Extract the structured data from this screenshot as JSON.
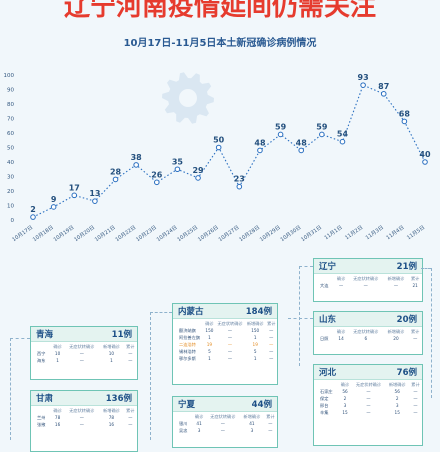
{
  "page": {
    "headline": "辽宁河南疫情延间仍需关注",
    "subtitle": "10月17日-11月5日本土新冠确诊病例情况"
  },
  "colors": {
    "headline": "#e63b2e",
    "line": "#2a6fc0",
    "panel_border": "#6fc4b5",
    "highlight": "#e38a1e",
    "background": "#f1f7fb"
  },
  "icons": [
    "gear-icon"
  ],
  "chart_data": {
    "type": "line",
    "title": "10月17日-11月5日本土新冠确诊病例情况",
    "x": [
      "10月17日",
      "10月18日",
      "10月19日",
      "10月20日",
      "10月21日",
      "10月22日",
      "10月23日",
      "10月24日",
      "10月25日",
      "10月26日",
      "10月27日",
      "10月28日",
      "10月29日",
      "10月30日",
      "10月31日",
      "11月1日",
      "11月2日",
      "11月3日",
      "11月4日",
      "11月5日"
    ],
    "values": [
      2,
      9,
      17,
      13,
      28,
      38,
      26,
      35,
      29,
      50,
      23,
      48,
      59,
      48,
      59,
      54,
      93,
      87,
      68,
      40
    ],
    "ylim": [
      0,
      100
    ],
    "yticks": [
      0,
      10,
      20,
      30,
      40,
      50,
      60,
      70,
      80,
      90,
      100
    ],
    "line_style": "dotted",
    "grid": false
  },
  "table_header": [
    "确诊",
    "无症状转确诊",
    "新增确诊",
    "累计"
  ],
  "provinces": [
    {
      "name": "辽宁",
      "total": "21例",
      "rows": [
        {
          "city": "大连",
          "vals": [
            "—",
            "—",
            "—",
            "21"
          ]
        }
      ]
    },
    {
      "name": "山东",
      "total": "20例",
      "rows": [
        {
          "city": "日照",
          "vals": [
            "14",
            "6",
            "20",
            "—"
          ]
        }
      ]
    },
    {
      "name": "河北",
      "total": "76例",
      "rows": [
        {
          "city": "石家庄",
          "vals": [
            "56",
            "—",
            "56",
            "—"
          ]
        },
        {
          "city": "保定",
          "vals": [
            "2",
            "—",
            "2",
            "—"
          ]
        },
        {
          "city": "邢台",
          "vals": [
            "3",
            "—",
            "3",
            "—"
          ]
        },
        {
          "city": "辛集",
          "vals": [
            "15",
            "—",
            "15",
            "—"
          ]
        }
      ]
    },
    {
      "name": "内蒙古",
      "total": "184例",
      "rows": [
        {
          "city": "额济纳旗",
          "vals": [
            "150",
            "—",
            "150",
            "—"
          ]
        },
        {
          "city": "阿拉善左旗",
          "vals": [
            "1",
            "—",
            "1",
            "—"
          ]
        },
        {
          "city": "二连浩特",
          "vals": [
            "19",
            "—",
            "19",
            "—"
          ],
          "highlight": true
        },
        {
          "city": "锡林浩特",
          "vals": [
            "5",
            "—",
            "5",
            "—"
          ]
        },
        {
          "city": "鄂尔多斯",
          "vals": [
            "1",
            "—",
            "1",
            "—"
          ]
        }
      ]
    },
    {
      "name": "青海",
      "total": "11例",
      "rows": [
        {
          "city": "西宁",
          "vals": [
            "10",
            "—",
            "10",
            "—"
          ]
        },
        {
          "city": "海东",
          "vals": [
            "1",
            "—",
            "1",
            "—"
          ]
        }
      ]
    },
    {
      "name": "甘肃",
      "total": "136例",
      "rows": [
        {
          "city": "兰州",
          "vals": [
            "78",
            "—",
            "78",
            "—"
          ]
        },
        {
          "city": "张掖",
          "vals": [
            "16",
            "—",
            "16",
            "—"
          ]
        }
      ]
    },
    {
      "name": "宁夏",
      "total": "44例",
      "rows": [
        {
          "city": "银川",
          "vals": [
            "41",
            "—",
            "41",
            "—"
          ]
        },
        {
          "city": "吴忠",
          "vals": [
            "3",
            "—",
            "3",
            "—"
          ]
        }
      ]
    }
  ]
}
